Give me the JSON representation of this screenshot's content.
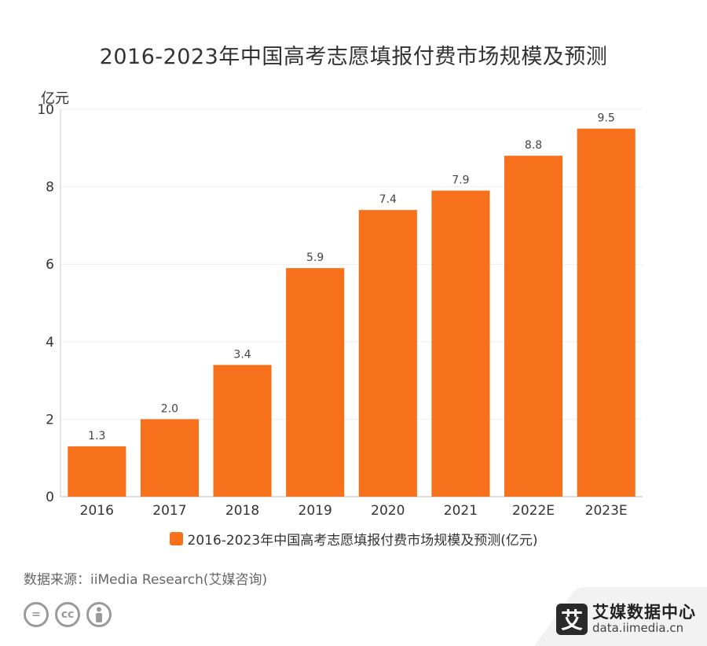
{
  "chart_data": {
    "type": "bar",
    "title": "2016-2023年中国高考志愿填报付费市场规模及预测",
    "ylabel": "亿元",
    "xlabel": "",
    "categories": [
      "2016",
      "2017",
      "2018",
      "2019",
      "2020",
      "2021",
      "2022E",
      "2023E"
    ],
    "series": [
      {
        "name": "2016-2023年中国高考志愿填报付费市场规模及预测(亿元)",
        "values": [
          1.3,
          2.0,
          3.4,
          5.9,
          7.4,
          7.9,
          8.8,
          9.5
        ],
        "labels": [
          "1.3",
          "2.0",
          "3.4",
          "5.9",
          "7.4",
          "7.9",
          "8.8",
          "9.5"
        ],
        "color": "#f7711d"
      }
    ],
    "ylim": [
      0,
      10
    ],
    "yticks": [
      0,
      2,
      4,
      6,
      8,
      10
    ],
    "grid": true,
    "legend_position": "bottom"
  },
  "source": "数据来源：iiMedia Research(艾媒咨询)",
  "brand": {
    "mark": "艾",
    "name": "艾媒数据中心",
    "url": "data.iimedia.cn"
  },
  "license_icons": [
    "equals-icon",
    "cc-icon",
    "person-icon"
  ],
  "license_labels": [
    "=",
    "cc"
  ]
}
